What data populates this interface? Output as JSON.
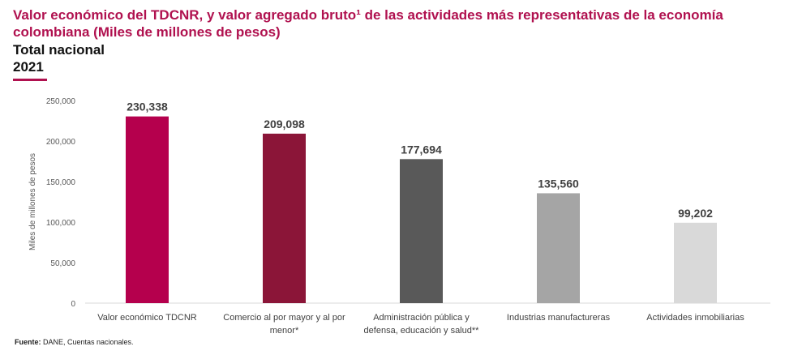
{
  "header": {
    "title": "Valor económico del TDCNR, y valor agregado bruto¹ de las actividades más representativas de la economía colombiana (Miles de millones de pesos)",
    "subtitle": "Total nacional",
    "year": "2021"
  },
  "chart_data": {
    "type": "bar",
    "title": "Valor económico del TDCNR, y valor agregado bruto¹ de las actividades más representativas de la economía colombiana (Miles de millones de pesos)",
    "xlabel": "",
    "ylabel": "Miles de millones de pesos",
    "ylim": [
      0,
      250000
    ],
    "yticks": [
      0,
      50000,
      100000,
      150000,
      200000,
      250000
    ],
    "ytick_labels": [
      "0",
      "50,000",
      "100,000",
      "150,000",
      "200,000",
      "250,000"
    ],
    "grid": false,
    "categories": [
      [
        "Valor económico TDCNR"
      ],
      [
        "Comercio al por mayor y al por",
        "menor*"
      ],
      [
        "Administración pública y",
        "defensa, educación y salud**"
      ],
      [
        "Industrias manufactureras"
      ],
      [
        "Actividades inmobiliarias"
      ]
    ],
    "values": [
      230338,
      209098,
      177694,
      135560,
      99202
    ],
    "value_labels": [
      "230,338",
      "209,098",
      "177,694",
      "135,560",
      "99,202"
    ],
    "colors": [
      "#b5004d",
      "#8b1538",
      "#595959",
      "#a5a5a5",
      "#d9d9d9"
    ]
  },
  "footer": {
    "source_label": "Fuente:",
    "source_text": " DANE, Cuentas nacionales."
  }
}
